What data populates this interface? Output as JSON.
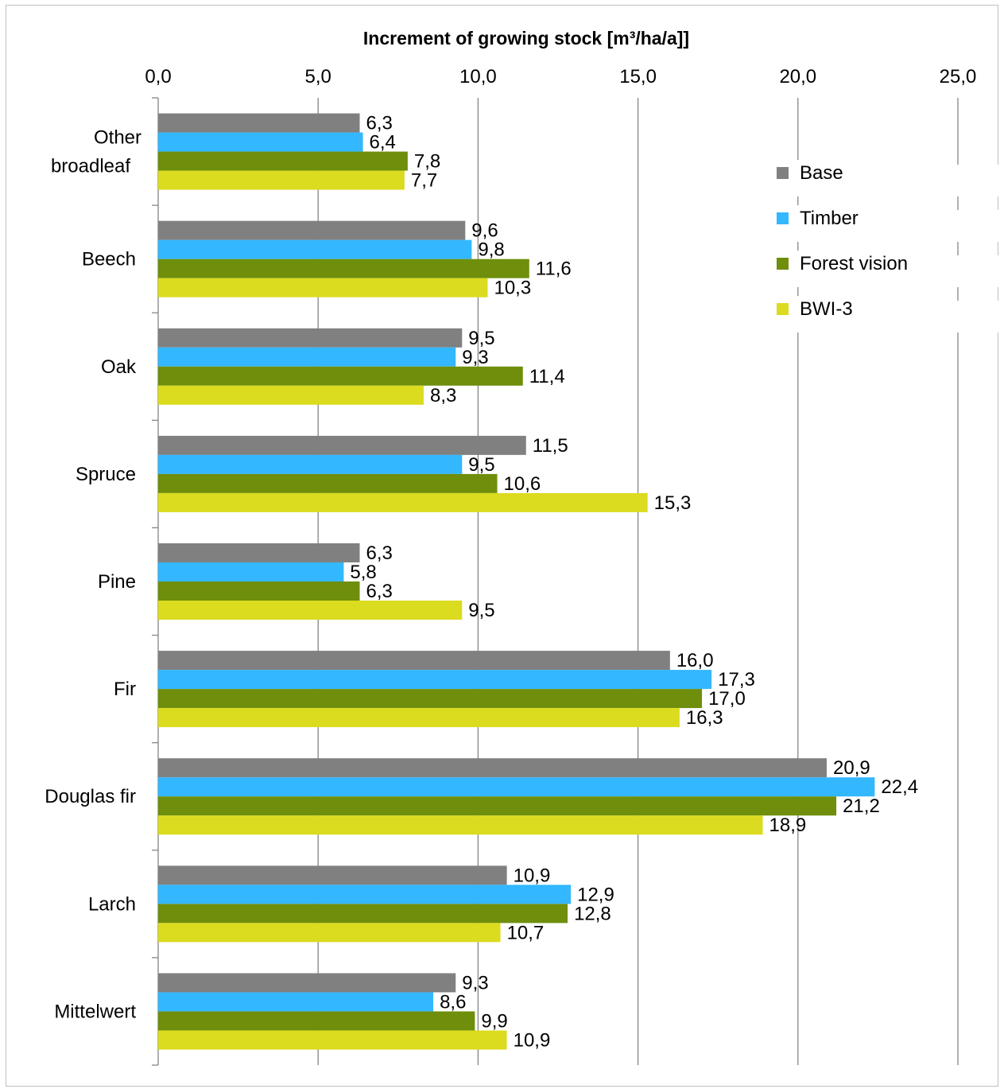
{
  "chart_data": {
    "type": "bar",
    "orientation": "horizontal",
    "title": "Increment of growing stock [m³/ha/a]]",
    "xlim": [
      0,
      25
    ],
    "xticks": [
      "0,0",
      "5,0",
      "10,0",
      "15,0",
      "20,0",
      "25,0"
    ],
    "grid": true,
    "legend_position": "right",
    "categories": [
      "Other broadleaf",
      "Beech",
      "Oak",
      "Spruce",
      "Pine",
      "Fir",
      "Douglas fir",
      "Larch",
      "Mittelwert"
    ],
    "series": [
      {
        "name": "Base",
        "color": "#808080",
        "values": [
          6.3,
          9.6,
          9.5,
          11.5,
          6.3,
          16.0,
          20.9,
          10.9,
          9.3
        ],
        "labels": [
          "6,3",
          "9,6",
          "9,5",
          "11,5",
          "6,3",
          "16,0",
          "20,9",
          "10,9",
          "9,3"
        ]
      },
      {
        "name": "Timber",
        "color": "#33b7ff",
        "values": [
          6.4,
          9.8,
          9.3,
          9.5,
          5.8,
          17.3,
          22.4,
          12.9,
          8.6
        ],
        "labels": [
          "6,4",
          "9,8",
          "9,3",
          "9,5",
          "5,8",
          "17,3",
          "22,4",
          "12,9",
          "8,6"
        ]
      },
      {
        "name": "Forest vision",
        "color": "#6e8e0c",
        "values": [
          7.8,
          11.6,
          11.4,
          10.6,
          6.3,
          17.0,
          21.2,
          12.8,
          9.9
        ],
        "labels": [
          "7,8",
          "11,6",
          "11,4",
          "10,6",
          "6,3",
          "17,0",
          "21,2",
          "12,8",
          "9,9"
        ]
      },
      {
        "name": "BWI-3",
        "color": "#dbdb1f",
        "values": [
          7.7,
          10.3,
          8.3,
          15.3,
          9.5,
          16.3,
          18.9,
          10.7,
          10.9
        ],
        "labels": [
          "7,7",
          "10,3",
          "8,3",
          "15,3",
          "9,5",
          "16,3",
          "18,9",
          "10,7",
          "10,9"
        ]
      }
    ]
  }
}
